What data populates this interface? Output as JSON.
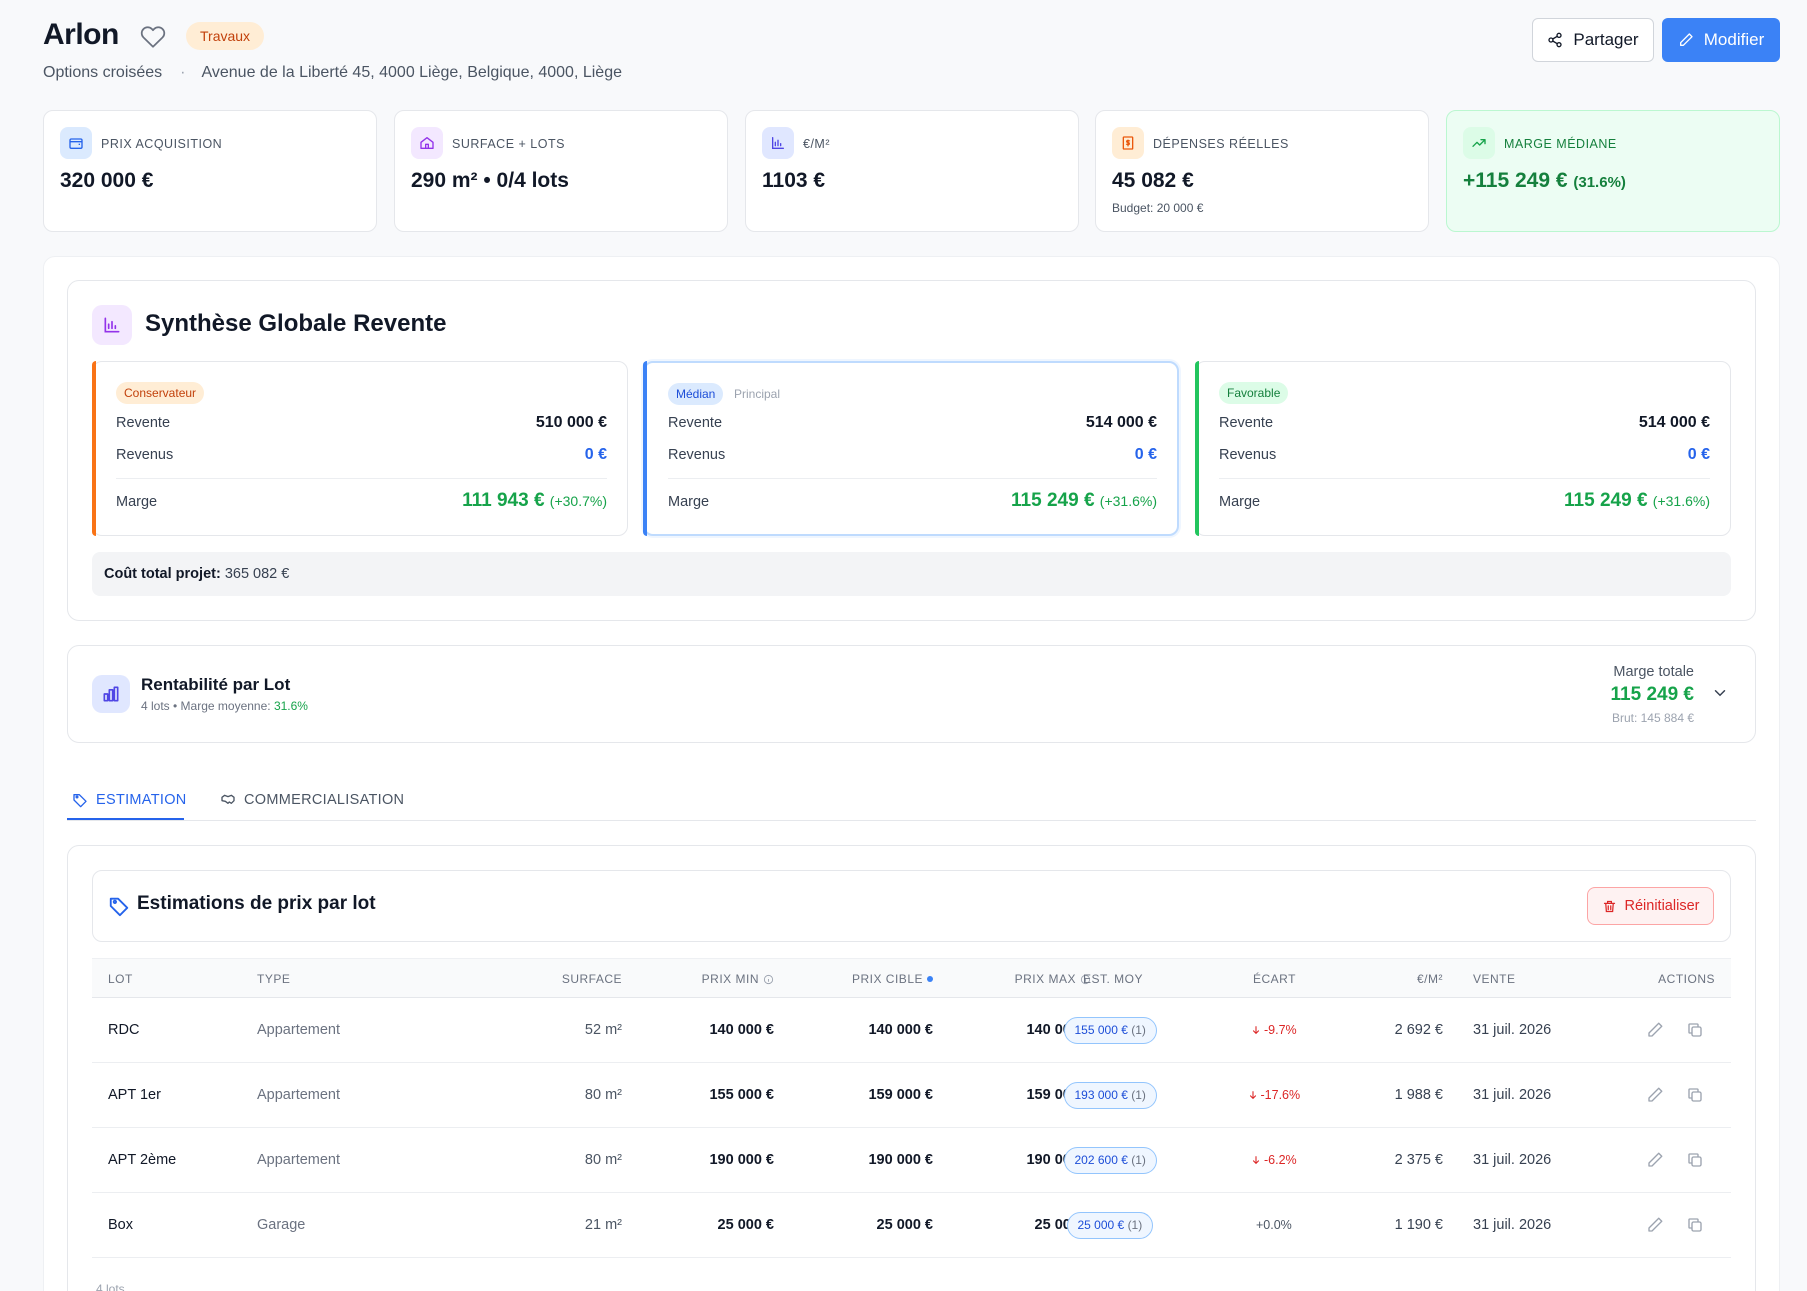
{
  "header": {
    "title": "Arlon",
    "status_badge": "Travaux",
    "subtitle_left": "Options croisées",
    "separator": "·",
    "address": "Avenue de la Liberté 45, 4000 Liège, Belgique, 4000, Liège",
    "share_label": "Partager",
    "edit_label": "Modifier"
  },
  "kpis": [
    {
      "label": "PRIX ACQUISITION",
      "value": "320 000 €",
      "icon": "wallet-icon"
    },
    {
      "label": "SURFACE + LOTS",
      "value": "290 m² • 0/4 lots",
      "icon": "home-icon"
    },
    {
      "label": "€/M²",
      "value": "1103 €",
      "icon": "bar-chart-icon"
    },
    {
      "label": "DÉPENSES RÉELLES",
      "value": "45 082 €",
      "sub": "Budget: 20 000 €",
      "icon": "receipt-icon"
    },
    {
      "label": "MARGE MÉDIANE",
      "value": "+115 249 €",
      "value_pct": "(31.6%)",
      "icon": "trending-up-icon"
    }
  ],
  "synthese": {
    "title": "Synthèse Globale Revente",
    "scenarios": [
      {
        "tag": "Conservateur",
        "tag2": "",
        "revente_label": "Revente",
        "revente": "510 000 €",
        "revenus_label": "Revenus",
        "revenus": "0 €",
        "marge_label": "Marge",
        "marge": "111 943 €",
        "marge_pct": "(+30.7%)",
        "color": "#f97316"
      },
      {
        "tag": "Médian",
        "tag2": "Principal",
        "revente_label": "Revente",
        "revente": "514 000 €",
        "revenus_label": "Revenus",
        "revenus": "0 €",
        "marge_label": "Marge",
        "marge": "115 249 €",
        "marge_pct": "(+31.6%)",
        "color": "#3b82f6"
      },
      {
        "tag": "Favorable",
        "tag2": "",
        "revente_label": "Revente",
        "revente": "514 000 €",
        "revenus_label": "Revenus",
        "revenus": "0 €",
        "marge_label": "Marge",
        "marge": "115 249 €",
        "marge_pct": "(+31.6%)",
        "color": "#22c55e"
      }
    ],
    "cout_label": "Coût total projet:",
    "cout_value": "365 082 €"
  },
  "rentabilite": {
    "title": "Rentabilité par Lot",
    "sub_prefix": "4 lots • Marge moyenne:",
    "sub_value": "31.6%",
    "total_label": "Marge totale",
    "total_value": "115 249 €",
    "brut": "Brut: 145 884 €"
  },
  "tabs": [
    {
      "label": "ESTIMATION",
      "active": true
    },
    {
      "label": "COMMERCIALISATION",
      "active": false
    }
  ],
  "estimations": {
    "title": "Estimations de prix par lot",
    "reset_label": "Réinitialiser",
    "columns": [
      "LOT",
      "TYPE",
      "SURFACE",
      "PRIX MIN",
      "PRIX CIBLE",
      "PRIX MAX",
      "EST. MOY",
      "ÉCART",
      "€/M²",
      "VENTE",
      "ACTIONS"
    ],
    "rows": [
      {
        "lot": "RDC",
        "type": "Appartement",
        "surface": "52 m²",
        "min": "140 000 €",
        "cible": "140 000 €",
        "max": "140 000 €",
        "est": "155 000 €",
        "est_n": "(1)",
        "ecart": "-9.7%",
        "ecart_dir": "down",
        "m2": "2 692 €",
        "vente": "31 juil. 2026"
      },
      {
        "lot": "APT 1er",
        "type": "Appartement",
        "surface": "80 m²",
        "min": "155 000 €",
        "cible": "159 000 €",
        "max": "159 000 €",
        "est": "193 000 €",
        "est_n": "(1)",
        "ecart": "-17.6%",
        "ecart_dir": "down",
        "m2": "1 988 €",
        "vente": "31 juil. 2026"
      },
      {
        "lot": "APT 2ème",
        "type": "Appartement",
        "surface": "80 m²",
        "min": "190 000 €",
        "cible": "190 000 €",
        "max": "190 000 €",
        "est": "202 600 €",
        "est_n": "(1)",
        "ecart": "-6.2%",
        "ecart_dir": "down",
        "m2": "2 375 €",
        "vente": "31 juil. 2026"
      },
      {
        "lot": "Box",
        "type": "Garage",
        "surface": "21 m²",
        "min": "25 000 €",
        "cible": "25 000 €",
        "max": "25 000 €",
        "est": "25 000 €",
        "est_n": "(1)",
        "ecart": "+0.0%",
        "ecart_dir": "none",
        "m2": "1 190 €",
        "vente": "31 juil. 2026"
      }
    ],
    "footer_count": "4 lots"
  }
}
